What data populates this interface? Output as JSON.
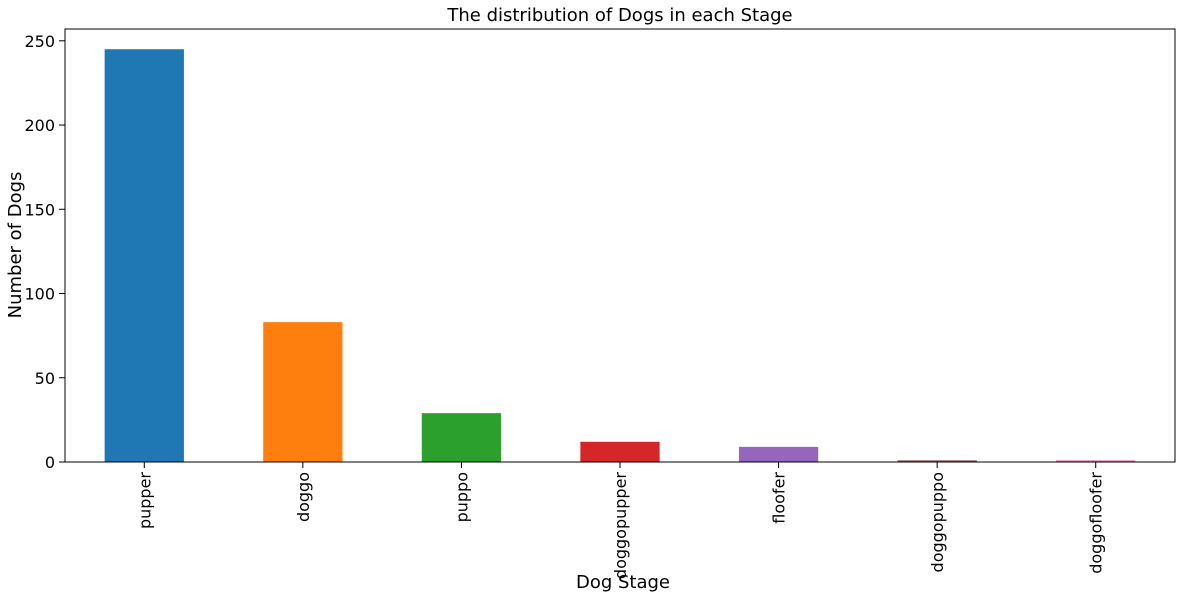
{
  "chart_data": {
    "type": "bar",
    "title": "The distribution of Dogs in each Stage",
    "xlabel": "Dog Stage",
    "ylabel": "Number of Dogs",
    "categories": [
      "pupper",
      "doggo",
      "puppo",
      "doggopupper",
      "floofer",
      "doggopuppo",
      "doggofloofer"
    ],
    "values": [
      245,
      83,
      29,
      12,
      9,
      1,
      1
    ],
    "colors": [
      "#1f77b4",
      "#ff7f0e",
      "#2ca02c",
      "#d62728",
      "#9467bd",
      "#8c564b",
      "#e377c2"
    ],
    "ylim": [
      0,
      257
    ],
    "yticks": [
      0,
      50,
      100,
      150,
      200,
      250
    ],
    "grid": false,
    "legend": "none"
  }
}
